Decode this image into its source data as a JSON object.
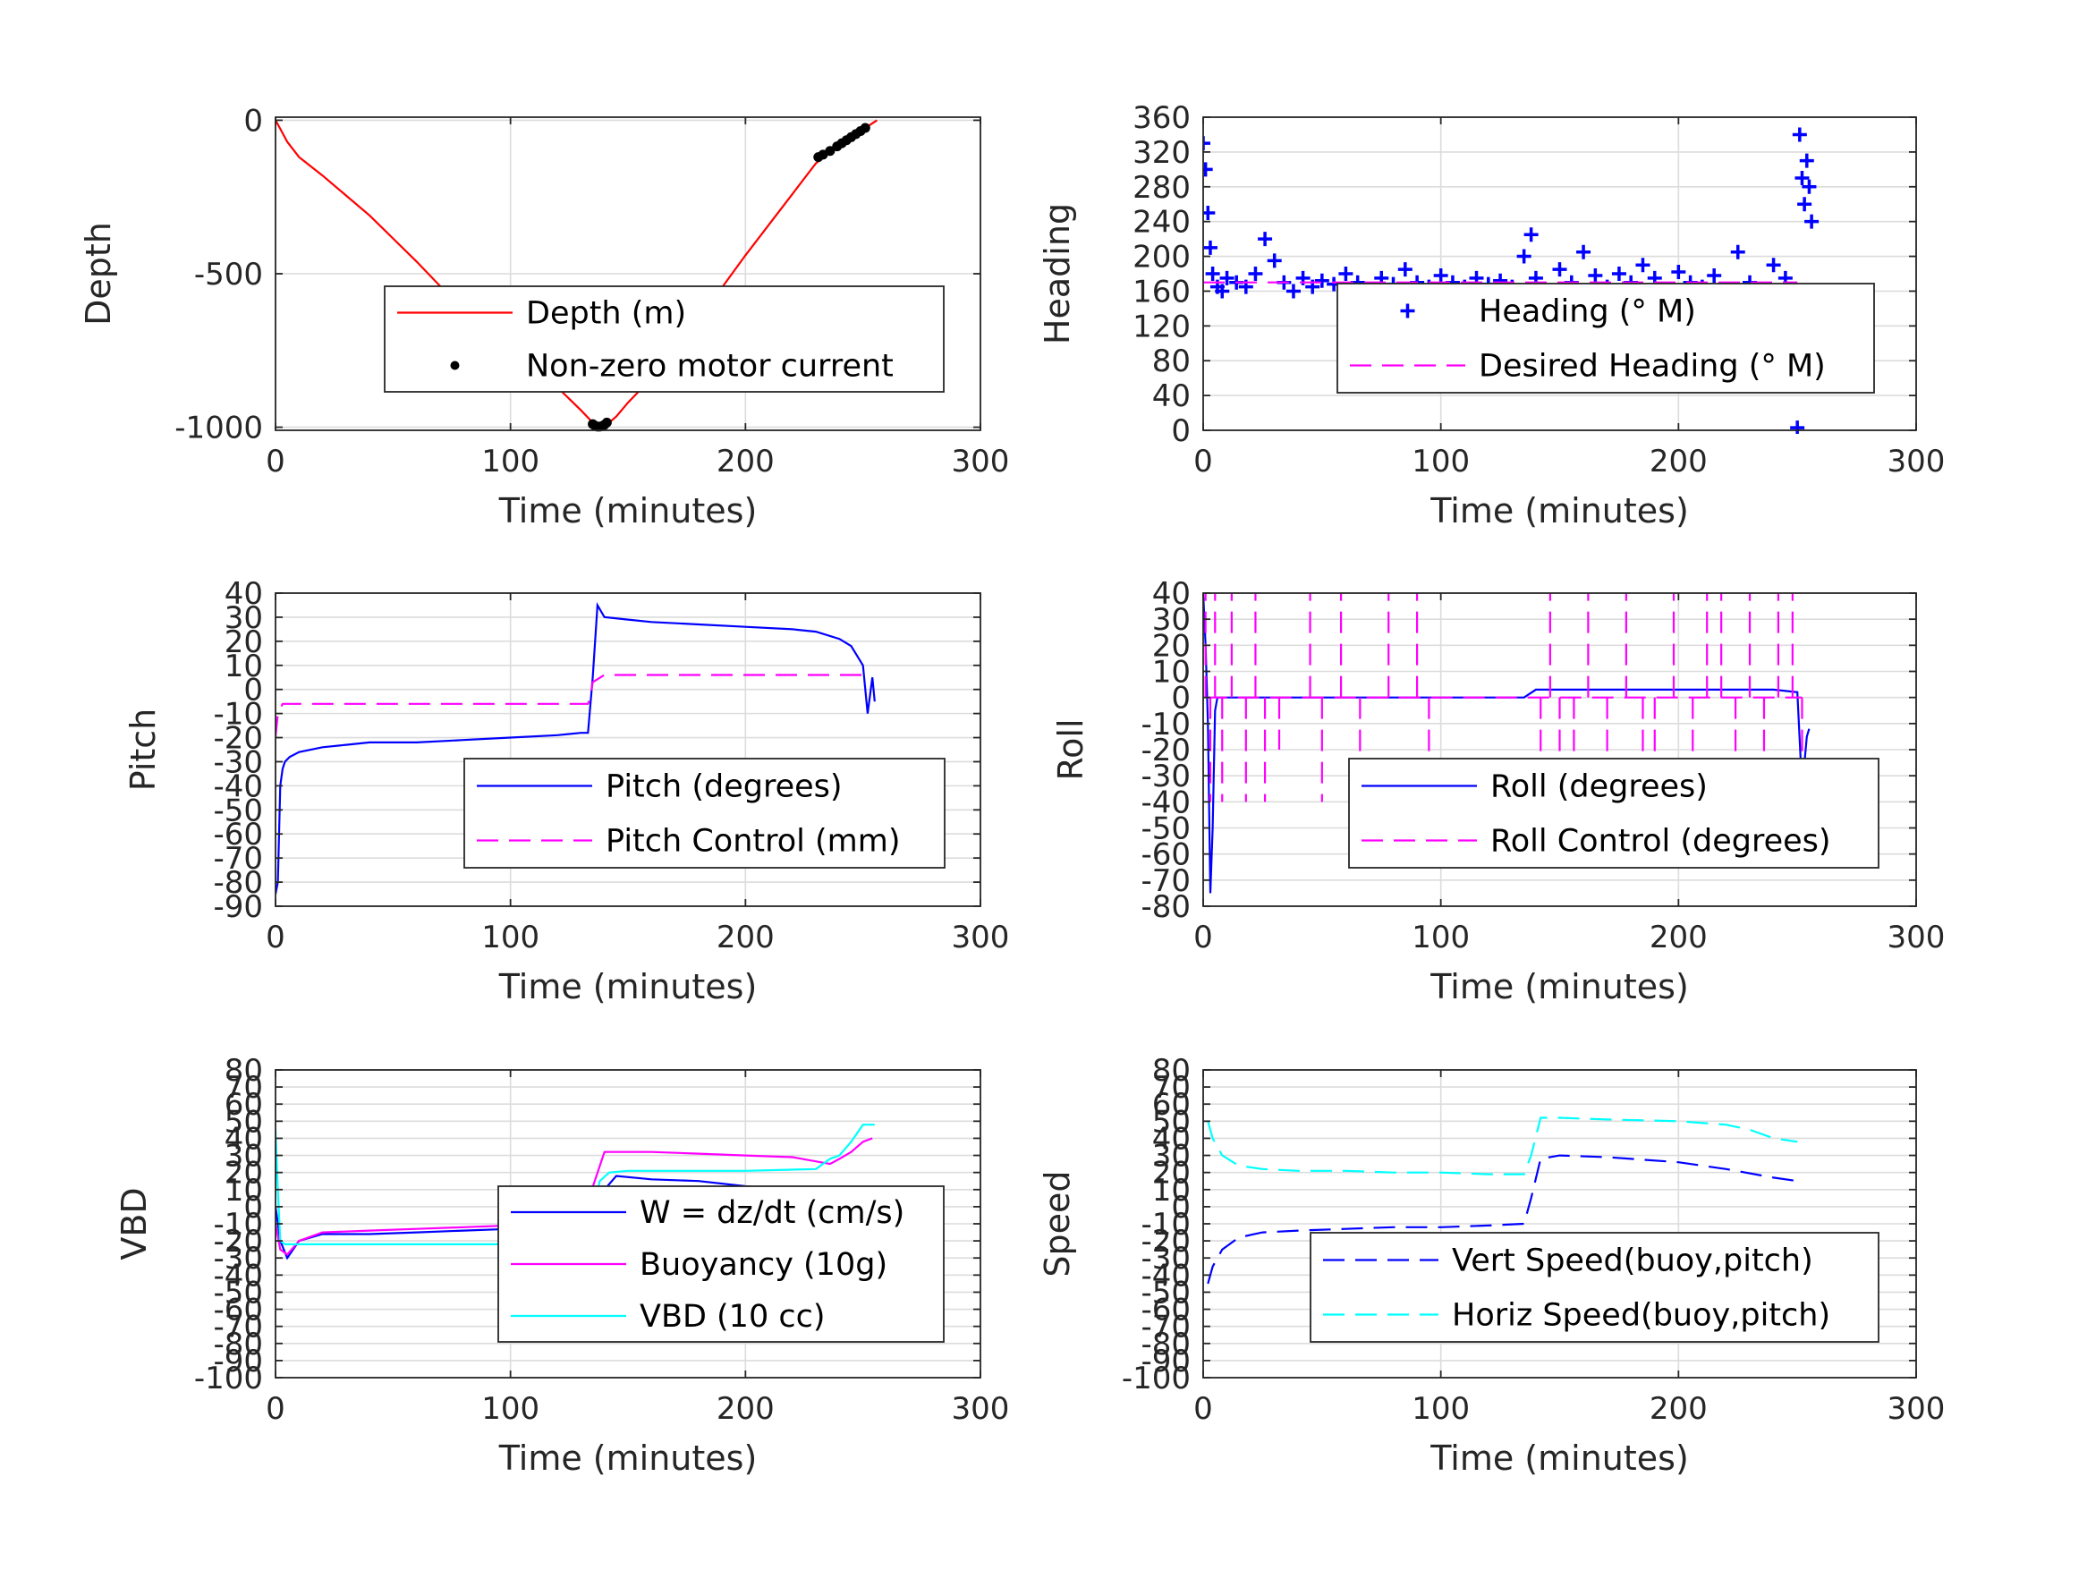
{
  "colors": {
    "red": "#ff0000",
    "blue": "#0000ff",
    "magenta": "#ff00ff",
    "cyan": "#00ffff",
    "black": "#000000"
  },
  "chart_data": [
    {
      "id": "depth",
      "type": "line",
      "xlabel": "Time (minutes)",
      "ylabel": "Depth",
      "xlim": [
        0,
        300
      ],
      "ylim": [
        -1010,
        10
      ],
      "xticks": [
        0,
        100,
        200,
        300
      ],
      "yticks": [
        0,
        -500,
        -1000
      ],
      "yticklabels": [
        "0",
        "-500",
        "-1000"
      ],
      "grid": true,
      "series": [
        {
          "name": "Depth (m)",
          "color": "red",
          "style": "solid",
          "x": [
            0,
            2,
            5,
            10,
            20,
            30,
            40,
            50,
            60,
            70,
            80,
            90,
            100,
            110,
            120,
            130,
            135,
            137,
            140,
            145,
            150,
            160,
            170,
            180,
            190,
            200,
            210,
            220,
            230,
            240,
            250,
            256
          ],
          "y": [
            0,
            -28,
            -70,
            -120,
            -180,
            -245,
            -310,
            -385,
            -460,
            -540,
            -600,
            -660,
            -730,
            -800,
            -870,
            -945,
            -985,
            -1000,
            -998,
            -965,
            -920,
            -840,
            -750,
            -650,
            -545,
            -440,
            -340,
            -240,
            -140,
            -80,
            -30,
            0
          ]
        },
        {
          "name": "Non-zero motor current",
          "color": "black",
          "marker": "dot",
          "x": [
            135,
            136,
            137,
            138,
            139,
            140,
            141,
            231,
            233,
            236,
            239,
            241,
            243,
            245,
            247,
            249,
            251
          ],
          "y": [
            -990,
            -995,
            -998,
            -998,
            -996,
            -992,
            -985,
            -120,
            -112,
            -100,
            -85,
            -75,
            -65,
            -55,
            -45,
            -35,
            -25
          ]
        }
      ],
      "legend": {
        "placement": "lower-right"
      }
    },
    {
      "id": "heading",
      "type": "scatter",
      "xlabel": "Time (minutes)",
      "ylabel": "Heading",
      "xlim": [
        0,
        300
      ],
      "ylim": [
        0,
        360
      ],
      "xticks": [
        0,
        100,
        200,
        300
      ],
      "yticks": [
        0,
        40,
        80,
        120,
        160,
        200,
        240,
        280,
        320,
        360
      ],
      "grid": true,
      "series": [
        {
          "name": "Heading (° M)",
          "color": "blue",
          "marker": "plus",
          "x": [
            0,
            1,
            2,
            3,
            4,
            6,
            8,
            10,
            14,
            18,
            22,
            26,
            30,
            34,
            38,
            42,
            46,
            50,
            55,
            60,
            65,
            70,
            75,
            80,
            85,
            90,
            95,
            100,
            105,
            110,
            115,
            120,
            125,
            130,
            135,
            138,
            140,
            145,
            150,
            155,
            160,
            165,
            170,
            175,
            180,
            185,
            190,
            195,
            200,
            205,
            210,
            215,
            220,
            225,
            230,
            235,
            240,
            245,
            248,
            250,
            251,
            252,
            253,
            254,
            255,
            256
          ],
          "y": [
            330,
            300,
            250,
            210,
            180,
            165,
            160,
            175,
            170,
            165,
            180,
            220,
            195,
            170,
            160,
            175,
            165,
            172,
            168,
            180,
            170,
            160,
            175,
            168,
            185,
            170,
            165,
            178,
            170,
            165,
            175,
            168,
            172,
            165,
            200,
            225,
            175,
            160,
            185,
            170,
            205,
            178,
            165,
            180,
            170,
            190,
            175,
            160,
            182,
            170,
            165,
            178,
            160,
            205,
            170,
            155,
            190,
            175,
            150,
            3,
            340,
            290,
            260,
            310,
            280,
            240
          ]
        }
      ],
      "reference": {
        "name": "Desired Heading (° M)",
        "color": "magenta",
        "style": "dashed",
        "x": [
          0,
          250
        ],
        "y": [
          170,
          170
        ]
      },
      "legend": {
        "placement": "lower-right"
      }
    },
    {
      "id": "pitch",
      "type": "line",
      "xlabel": "Time (minutes)",
      "ylabel": "Pitch",
      "xlim": [
        0,
        300
      ],
      "ylim": [
        -90,
        40
      ],
      "xticks": [
        0,
        100,
        200,
        300
      ],
      "yticks": [
        40,
        30,
        20,
        10,
        0,
        -10,
        -20,
        -30,
        -40,
        -50,
        -60,
        -70,
        -80,
        -90
      ],
      "grid": true,
      "series": [
        {
          "name": "Pitch (degrees)",
          "color": "blue",
          "style": "solid",
          "x": [
            0,
            1,
            2,
            3,
            4,
            6,
            10,
            20,
            30,
            40,
            60,
            80,
            100,
            120,
            130,
            133,
            135,
            137,
            140,
            150,
            160,
            180,
            200,
            220,
            230,
            240,
            245,
            250,
            252,
            254,
            255
          ],
          "y": [
            -85,
            -80,
            -40,
            -33,
            -30,
            -28,
            -26,
            -24,
            -23,
            -22,
            -22,
            -21,
            -20,
            -19,
            -18,
            -18,
            5,
            35,
            30,
            29,
            28,
            27,
            26,
            25,
            24,
            21,
            18,
            10,
            -10,
            5,
            -5
          ]
        },
        {
          "name": "Pitch Control (mm)",
          "color": "magenta",
          "style": "dashed",
          "x": [
            0,
            1,
            2,
            3,
            5,
            30,
            60,
            90,
            120,
            133,
            134,
            135,
            140,
            170,
            200,
            230,
            250,
            252
          ],
          "y": [
            -20,
            -10,
            -8,
            -6,
            -6,
            -6,
            -6,
            -6,
            -6,
            -6,
            -3,
            3,
            6,
            6,
            6,
            6,
            6,
            6
          ]
        }
      ],
      "legend": {
        "placement": "lower-right"
      }
    },
    {
      "id": "roll",
      "type": "line",
      "xlabel": "Time (minutes)",
      "ylabel": "Roll",
      "xlim": [
        0,
        300
      ],
      "ylim": [
        -80,
        40
      ],
      "xticks": [
        0,
        100,
        200,
        300
      ],
      "yticks": [
        40,
        30,
        20,
        10,
        0,
        -10,
        -20,
        -30,
        -40,
        -50,
        -60,
        -70,
        -80
      ],
      "grid": true,
      "series": [
        {
          "name": "Roll (degrees)",
          "color": "blue",
          "style": "solid",
          "x": [
            0,
            1,
            2,
            3,
            4,
            5,
            6,
            10,
            20,
            40,
            60,
            80,
            100,
            120,
            135,
            140,
            160,
            180,
            200,
            220,
            240,
            250,
            252,
            254,
            255
          ],
          "y": [
            40,
            20,
            -10,
            -75,
            -50,
            -5,
            0,
            0,
            0,
            0,
            0,
            0,
            0,
            0,
            0,
            3,
            3,
            3,
            3,
            3,
            3,
            2,
            -35,
            -15,
            -12
          ]
        },
        {
          "name": "Roll Control (degrees)",
          "color": "magenta",
          "style": "dashed",
          "spikes_x": [
            1,
            3,
            5,
            8,
            12,
            18,
            22,
            26,
            32,
            45,
            50,
            58,
            66,
            78,
            90,
            95,
            142,
            146,
            150,
            156,
            162,
            170,
            178,
            185,
            190,
            198,
            206,
            212,
            218,
            224,
            230,
            236,
            242,
            248,
            252
          ],
          "spikes_y": [
            40,
            -40,
            40,
            -40,
            40,
            -40,
            40,
            -40,
            -20,
            40,
            -40,
            40,
            -30,
            40,
            40,
            -40,
            -40,
            40,
            -40,
            -40,
            40,
            -40,
            40,
            -40,
            -40,
            40,
            -40,
            40,
            40,
            -40,
            40,
            -40,
            40,
            40,
            -40
          ],
          "baseline": 0
        }
      ],
      "legend": {
        "placement": "lower-right"
      }
    },
    {
      "id": "vbd",
      "type": "line",
      "xlabel": "Time (minutes)",
      "ylabel": "VBD",
      "xlim": [
        0,
        300
      ],
      "ylim": [
        -100,
        80
      ],
      "xticks": [
        0,
        100,
        200,
        300
      ],
      "yticks": [
        80,
        70,
        60,
        50,
        40,
        30,
        20,
        10,
        0,
        -10,
        -20,
        -30,
        -40,
        -50,
        -60,
        -70,
        -80,
        -90,
        -100
      ],
      "grid": true,
      "series": [
        {
          "name": "W = dz/dt (cm/s)",
          "color": "blue",
          "style": "solid",
          "x": [
            0,
            2,
            5,
            10,
            20,
            40,
            60,
            80,
            100,
            120,
            133,
            135,
            140,
            145,
            160,
            180,
            200,
            220,
            240,
            250,
            255
          ],
          "y": [
            0,
            -20,
            -30,
            -20,
            -16,
            -16,
            -15,
            -14,
            -13,
            -12,
            -12,
            -5,
            10,
            18,
            16,
            15,
            12,
            10,
            8,
            8,
            12
          ]
        },
        {
          "name": "Buoyancy (10g)",
          "color": "magenta",
          "style": "solid",
          "x": [
            0,
            2,
            5,
            10,
            20,
            40,
            60,
            80,
            100,
            120,
            130,
            140,
            145,
            160,
            180,
            200,
            220,
            232,
            236,
            240,
            245,
            250,
            254
          ],
          "y": [
            -10,
            -25,
            -28,
            -20,
            -15,
            -14,
            -13,
            -12,
            -11,
            -10,
            -9,
            32,
            32,
            32,
            31,
            30,
            29,
            26,
            25,
            28,
            32,
            38,
            40
          ]
        },
        {
          "name": "VBD (10 cc)",
          "color": "cyan",
          "style": "solid",
          "x": [
            0,
            1,
            2,
            4,
            10,
            30,
            60,
            90,
            120,
            132,
            138,
            142,
            150,
            170,
            200,
            230,
            236,
            240,
            245,
            250,
            255
          ],
          "y": [
            45,
            10,
            -20,
            -22,
            -22,
            -22,
            -22,
            -22,
            -22,
            -20,
            15,
            20,
            21,
            21,
            21,
            22,
            28,
            30,
            38,
            48,
            48
          ]
        }
      ],
      "legend": {
        "placement": "right"
      }
    },
    {
      "id": "speed",
      "type": "line",
      "xlabel": "Time (minutes)",
      "ylabel": "Speed",
      "xlim": [
        0,
        300
      ],
      "ylim": [
        -100,
        80
      ],
      "xticks": [
        0,
        100,
        200,
        300
      ],
      "yticks": [
        80,
        70,
        60,
        50,
        40,
        30,
        20,
        10,
        0,
        -10,
        -20,
        -30,
        -40,
        -50,
        -60,
        -70,
        -80,
        -90,
        -100
      ],
      "grid": true,
      "series": [
        {
          "name": "Vert Speed(buoy,pitch)",
          "color": "blue",
          "style": "dashed",
          "x": [
            2,
            4,
            8,
            15,
            25,
            40,
            60,
            80,
            100,
            120,
            135,
            138,
            142,
            150,
            170,
            200,
            220,
            240,
            250
          ],
          "y": [
            -45,
            -35,
            -25,
            -18,
            -15,
            -14,
            -13,
            -12,
            -12,
            -11,
            -10,
            5,
            28,
            30,
            29,
            26,
            22,
            17,
            15
          ]
        },
        {
          "name": "Horiz Speed(buoy,pitch)",
          "color": "cyan",
          "style": "dashed",
          "x": [
            2,
            4,
            8,
            15,
            25,
            40,
            60,
            80,
            100,
            120,
            135,
            138,
            142,
            150,
            170,
            200,
            220,
            230,
            240,
            250
          ],
          "y": [
            50,
            40,
            30,
            24,
            22,
            21,
            21,
            20,
            20,
            19,
            19,
            30,
            52,
            52,
            51,
            50,
            48,
            45,
            40,
            38
          ]
        }
      ],
      "legend": {
        "placement": "lower-right"
      }
    }
  ]
}
